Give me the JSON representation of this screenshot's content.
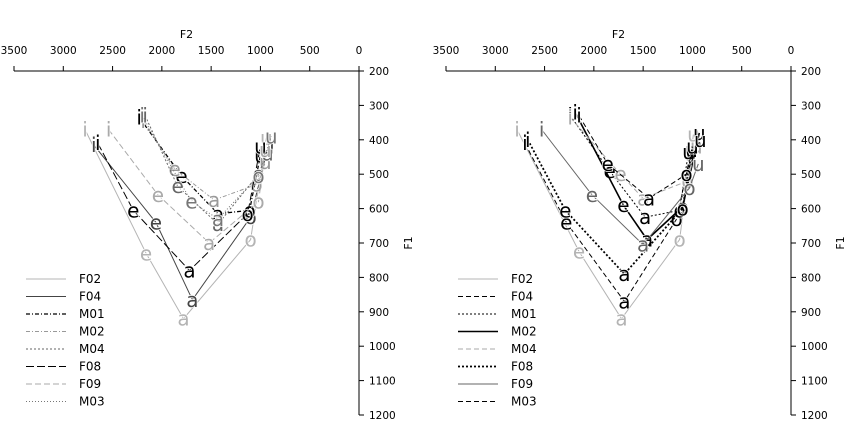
{
  "chart_data": [
    {
      "type": "line",
      "subtype": "vowel-space",
      "xlabel": "F2",
      "ylabel": "F1",
      "xlim": [
        3500,
        0
      ],
      "ylim": [
        200,
        1200
      ],
      "xticks": [
        3500,
        3000,
        2500,
        2000,
        1500,
        1000,
        500,
        0
      ],
      "yticks": [
        200,
        300,
        400,
        500,
        600,
        700,
        800,
        900,
        1000,
        1100,
        1200
      ],
      "x_axis_position": "top",
      "y_axis_position": "right",
      "legend_position": "bottom-left",
      "grid": false,
      "vowel_order": [
        "i",
        "e",
        "a",
        "o",
        "u"
      ],
      "series": [
        {
          "name": "F02",
          "color": "#b4b4b4",
          "dash": "",
          "width": 1,
          "points": [
            [
              2780,
              370
            ],
            [
              2160,
              730
            ],
            [
              1780,
              920
            ],
            [
              1100,
              690
            ],
            [
              940,
              395
            ]
          ]
        },
        {
          "name": "F04",
          "color": "#444444",
          "dash": "",
          "width": 1,
          "points": [
            [
              2690,
              415
            ],
            [
              2060,
              640
            ],
            [
              1690,
              865
            ],
            [
              1100,
              625
            ],
            [
              920,
              420
            ]
          ]
        },
        {
          "name": "M01",
          "color": "#000000",
          "dash": "4,2,1,2",
          "width": 1.3,
          "points": [
            [
              2230,
              335
            ],
            [
              1800,
              505
            ],
            [
              1430,
              615
            ],
            [
              1110,
              605
            ],
            [
              1000,
              445
            ]
          ]
        },
        {
          "name": "M02",
          "color": "#999999",
          "dash": "4,2,1,2",
          "width": 1,
          "points": [
            [
              2190,
              345
            ],
            [
              1870,
              485
            ],
            [
              1470,
              575
            ],
            [
              1040,
              530
            ],
            [
              950,
              465
            ]
          ]
        },
        {
          "name": "M04",
          "color": "#666666",
          "dash": "2,2",
          "width": 1,
          "points": [
            [
              2170,
              330
            ],
            [
              1840,
              535
            ],
            [
              1430,
              645
            ],
            [
              1020,
              500
            ],
            [
              930,
              440
            ]
          ]
        },
        {
          "name": "F08",
          "color": "#000000",
          "dash": "8,3",
          "width": 1,
          "points": [
            [
              2650,
              410
            ],
            [
              2290,
              605
            ],
            [
              1720,
              780
            ],
            [
              1130,
              615
            ],
            [
              1000,
              420
            ]
          ]
        },
        {
          "name": "F09",
          "color": "#aaaaaa",
          "dash": "6,3",
          "width": 1,
          "points": [
            [
              2540,
              370
            ],
            [
              2040,
              560
            ],
            [
              1520,
              700
            ],
            [
              1020,
              580
            ],
            [
              950,
              430
            ]
          ]
        },
        {
          "name": "M03",
          "color": "#777777",
          "dash": "1,2",
          "width": 1,
          "points": [
            [
              2200,
              330
            ],
            [
              1700,
              580
            ],
            [
              1430,
              630
            ],
            [
              1020,
              505
            ],
            [
              890,
              390
            ]
          ]
        }
      ]
    },
    {
      "type": "line",
      "subtype": "vowel-space",
      "xlabel": "F2",
      "ylabel": "F1",
      "xlim": [
        3500,
        0
      ],
      "ylim": [
        200,
        1200
      ],
      "xticks": [
        3500,
        3000,
        2500,
        2000,
        1500,
        1000,
        500,
        0
      ],
      "yticks": [
        200,
        300,
        400,
        500,
        600,
        700,
        800,
        900,
        1000,
        1100,
        1200
      ],
      "x_axis_position": "top",
      "y_axis_position": "right",
      "legend_position": "bottom-left",
      "grid": false,
      "vowel_order": [
        "i",
        "e",
        "a",
        "o",
        "u"
      ],
      "series": [
        {
          "name": "F02",
          "color": "#b4b4b4",
          "dash": "",
          "width": 1,
          "points": [
            [
              2780,
              370
            ],
            [
              2150,
              725
            ],
            [
              1720,
              920
            ],
            [
              1130,
              690
            ],
            [
              990,
              385
            ]
          ]
        },
        {
          "name": "F04",
          "color": "#000000",
          "dash": "5,3",
          "width": 1,
          "points": [
            [
              2700,
              410
            ],
            [
              2280,
              640
            ],
            [
              1690,
              870
            ],
            [
              1160,
              630
            ],
            [
              1010,
              430
            ]
          ]
        },
        {
          "name": "M01",
          "color": "#000000",
          "dash": "2,2",
          "width": 1,
          "points": [
            [
              2240,
              330
            ],
            [
              1840,
              490
            ],
            [
              1480,
              625
            ],
            [
              1130,
              605
            ],
            [
              1040,
              435
            ]
          ]
        },
        {
          "name": "M02",
          "color": "#000000",
          "dash": "",
          "width": 1.6,
          "points": [
            [
              2190,
              320
            ],
            [
              1700,
              590
            ],
            [
              1460,
              690
            ],
            [
              1100,
              595
            ],
            [
              930,
              380
            ]
          ]
        },
        {
          "name": "M04",
          "color": "#aaaaaa",
          "dash": "5,3",
          "width": 1,
          "points": [
            [
              2240,
              335
            ],
            [
              1730,
              500
            ],
            [
              1500,
              570
            ],
            [
              1050,
              520
            ],
            [
              960,
              420
            ]
          ]
        },
        {
          "name": "F08",
          "color": "#000000",
          "dash": "2,2",
          "width": 1.8,
          "points": [
            [
              2670,
              400
            ],
            [
              2290,
              605
            ],
            [
              1690,
              790
            ],
            [
              1100,
              600
            ],
            [
              1000,
              420
            ]
          ]
        },
        {
          "name": "F09",
          "color": "#666666",
          "dash": "",
          "width": 1,
          "points": [
            [
              2530,
              370
            ],
            [
              2020,
              560
            ],
            [
              1500,
              705
            ],
            [
              1030,
              540
            ],
            [
              940,
              470
            ]
          ]
        },
        {
          "name": "M03",
          "color": "#000000",
          "dash": "5,3",
          "width": 1,
          "points": [
            [
              2150,
              330
            ],
            [
              1860,
              470
            ],
            [
              1440,
              570
            ],
            [
              1060,
              500
            ],
            [
              920,
              400
            ]
          ]
        }
      ]
    }
  ]
}
